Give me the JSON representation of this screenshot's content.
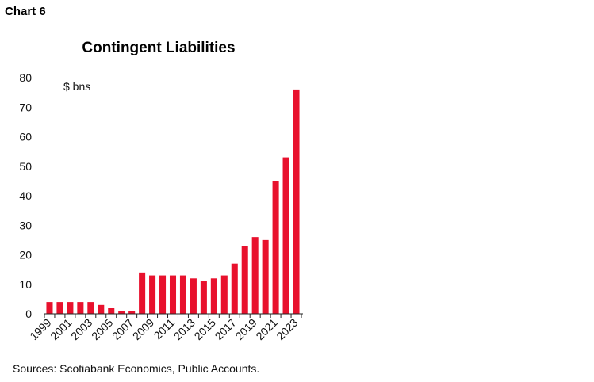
{
  "header": {
    "chart_label": "Chart 6"
  },
  "footer": {
    "source": "Sources: Scotiabank Economics, Public Accounts."
  },
  "chart_data": {
    "type": "bar",
    "title": "Contingent Liabilities",
    "unit_label": "$ bns",
    "xlabel": "",
    "ylabel": "",
    "ylim": [
      0,
      80
    ],
    "yticks": [
      0,
      10,
      20,
      30,
      40,
      50,
      60,
      70,
      80
    ],
    "grid": false,
    "bar_color": "#e8112d",
    "categories": [
      "1999",
      "2000",
      "2001",
      "2002",
      "2003",
      "2004",
      "2005",
      "2006",
      "2007",
      "2008",
      "2009",
      "2010",
      "2011",
      "2012",
      "2013",
      "2014",
      "2015",
      "2016",
      "2017",
      "2018",
      "2019",
      "2020",
      "2021",
      "2022",
      "2023"
    ],
    "x_tick_labels": [
      "1999",
      "2001",
      "2003",
      "2005",
      "2007",
      "2009",
      "2011",
      "2013",
      "2015",
      "2017",
      "2019",
      "2021",
      "2023"
    ],
    "values": [
      4,
      4,
      4,
      4,
      4,
      3,
      2,
      1,
      1,
      14,
      13,
      13,
      13,
      13,
      12,
      11,
      12,
      13,
      17,
      23,
      26,
      25,
      45,
      53,
      76
    ]
  }
}
